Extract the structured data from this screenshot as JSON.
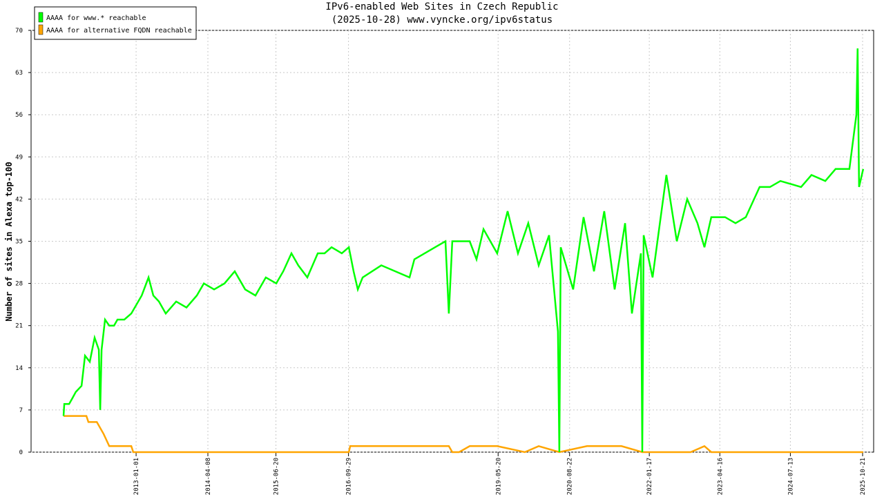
{
  "chart_data": {
    "type": "line",
    "title": "IPv6-enabled Web Sites in Czech Republic",
    "subtitle": "(2025-10-28) www.vyncke.org/ipv6status",
    "y_label": "Number of sites in Alexa top-100",
    "legend": "top-left",
    "grid": true,
    "xlim": [
      "2011-02-25",
      "2025-12-31"
    ],
    "xticks": [
      "2013-01-01",
      "2014-04-08",
      "2015-06-20",
      "2016-09-29",
      "2019-05-20",
      "2020-08-22",
      "2022-01-17",
      "2023-04-16",
      "2024-07-13",
      "2025-10-21"
    ],
    "ylim": [
      0,
      70
    ],
    "yticks": [
      0,
      7,
      14,
      21,
      28,
      35,
      42,
      49,
      56,
      63,
      70
    ],
    "series": [
      {
        "name": "AAAA for www.* reachable",
        "color": "#00ff00",
        "x": [
          "2011-09-22",
          "2011-09-27",
          "2011-10-28",
          "2011-11-19",
          "2011-12-10",
          "2012-01-16",
          "2012-02-07",
          "2012-03-09",
          "2012-04-09",
          "2012-05-06",
          "2012-05-15",
          "2012-05-24",
          "2012-06-15",
          "2012-07-12",
          "2012-08-12",
          "2012-09-03",
          "2012-10-17",
          "2012-12-01",
          "2013-02-06",
          "2013-03-22",
          "2013-04-22",
          "2013-05-28",
          "2013-07-11",
          "2013-09-16",
          "2013-11-21",
          "2014-01-27",
          "2014-03-13",
          "2014-05-18",
          "2014-07-24",
          "2014-09-28",
          "2014-12-04",
          "2015-02-08",
          "2015-04-16",
          "2015-06-22",
          "2015-08-06",
          "2015-09-28",
          "2015-11-11",
          "2016-01-08",
          "2016-03-15",
          "2016-04-28",
          "2016-06-12",
          "2016-08-17",
          "2016-10-01",
          "2016-11-01",
          "2016-11-28",
          "2016-12-29",
          "2017-04-28",
          "2017-10-27",
          "2017-11-27",
          "2018-06-15",
          "2018-07-07",
          "2018-07-29",
          "2018-11-18",
          "2019-01-01",
          "2019-02-15",
          "2019-05-14",
          "2019-07-20",
          "2019-09-25",
          "2019-11-30",
          "2020-02-05",
          "2020-04-12",
          "2020-06-08",
          "2020-06-17",
          "2020-06-26",
          "2020-09-14",
          "2020-11-20",
          "2021-01-26",
          "2021-04-02",
          "2021-06-08",
          "2021-08-14",
          "2021-09-27",
          "2021-11-24",
          "2021-12-03",
          "2021-12-12",
          "2022-02-07",
          "2022-05-07",
          "2022-07-13",
          "2022-09-18",
          "2022-11-23",
          "2023-01-07",
          "2023-02-20",
          "2023-05-20",
          "2023-07-26",
          "2023-09-30",
          "2023-12-28",
          "2024-03-04",
          "2024-05-10",
          "2024-09-20",
          "2024-11-26",
          "2025-02-23",
          "2025-04-30",
          "2025-07-28",
          "2025-09-11",
          "2025-09-19",
          "2025-09-28",
          "2025-10-25"
        ],
        "values": [
          6,
          8,
          8,
          9,
          10,
          11,
          16,
          15,
          19,
          17,
          7,
          17,
          22,
          21,
          21,
          22,
          22,
          23,
          26,
          29,
          26,
          25,
          23,
          25,
          24,
          26,
          28,
          27,
          28,
          30,
          27,
          26,
          29,
          28,
          30,
          33,
          31,
          29,
          33,
          33,
          34,
          33,
          34,
          30,
          27,
          29,
          31,
          29,
          32,
          35,
          23,
          35,
          35,
          32,
          37,
          33,
          40,
          33,
          38,
          31,
          36,
          20,
          0,
          34,
          27,
          39,
          30,
          40,
          27,
          38,
          23,
          33,
          0,
          36,
          29,
          46,
          35,
          42,
          38,
          34,
          39,
          39,
          38,
          39,
          44,
          44,
          45,
          44,
          46,
          45,
          47,
          47,
          56,
          67,
          44,
          47
        ]
      },
      {
        "name": "AAAA for alternative FQDN reachable",
        "color": "#ffa500",
        "x": [
          "2011-09-22",
          "2012-02-16",
          "2012-02-29",
          "2012-04-23",
          "2012-06-06",
          "2012-07-12",
          "2012-12-01",
          "2012-12-14",
          "2016-10-01",
          "2016-10-10",
          "2018-07-07",
          "2018-07-29",
          "2018-09-11",
          "2018-11-18",
          "2019-05-14",
          "2019-11-08",
          "2020-02-05",
          "2020-06-17",
          "2020-12-12",
          "2021-07-22",
          "2021-12-03",
          "2022-10-10",
          "2023-01-07",
          "2023-02-20",
          "2025-10-25"
        ],
        "values": [
          6,
          6,
          5,
          5,
          3,
          1,
          1,
          0,
          0,
          1,
          1,
          0,
          0,
          1,
          1,
          0,
          1,
          0,
          1,
          1,
          0,
          0,
          1,
          0,
          0
        ]
      }
    ]
  }
}
